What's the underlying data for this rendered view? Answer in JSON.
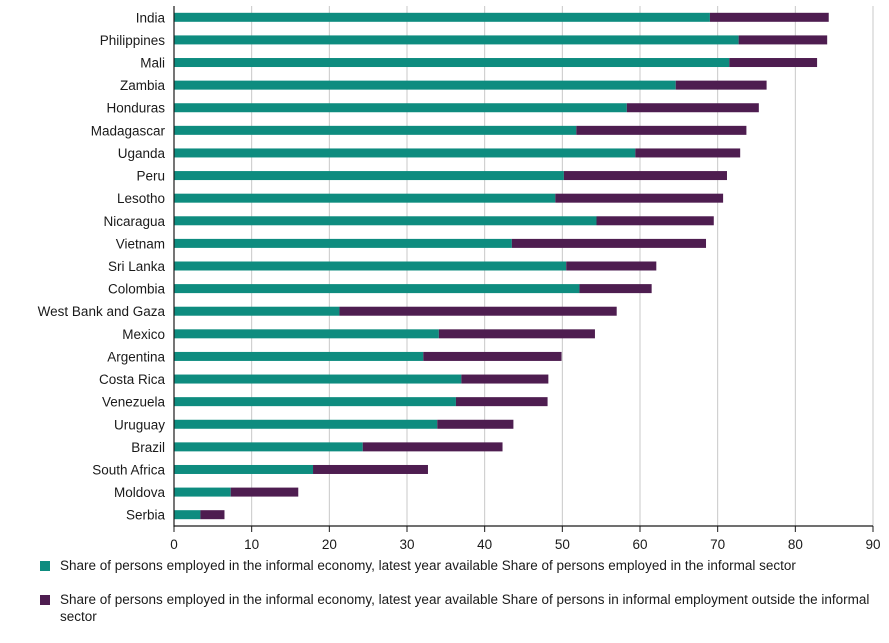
{
  "colors": {
    "sector": "#0e8c7f",
    "outside": "#4e1d50",
    "grid": "#c8c8c8",
    "axis": "#1a1a1a"
  },
  "chart_data": {
    "type": "bar",
    "orientation": "horizontal",
    "stacked": true,
    "categories": [
      "India",
      "Philippines",
      "Mali",
      "Zambia",
      "Honduras",
      "Madagascar",
      "Uganda",
      "Peru",
      "Lesotho",
      "Nicaragua",
      "Vietnam",
      "Sri Lanka",
      "Colombia",
      "West Bank and Gaza",
      "Mexico",
      "Argentina",
      "Costa Rica",
      "Venezuela",
      "Uruguay",
      "Brazil",
      "South Africa",
      "Moldova",
      "Serbia"
    ],
    "series": [
      {
        "name": "Share of persons employed in the informal economy, latest year available Share of persons employed in the informal sector",
        "color": "#0e8c7f",
        "values": [
          69.0,
          72.7,
          71.5,
          64.6,
          58.3,
          51.8,
          59.4,
          50.2,
          49.1,
          54.4,
          43.5,
          50.5,
          52.2,
          21.3,
          34.1,
          32.1,
          37.0,
          36.3,
          33.9,
          24.3,
          17.9,
          7.3,
          3.4
        ]
      },
      {
        "name": "Share of persons employed in the informal economy, latest year available Share of persons in informal employment outside the informal sector",
        "color": "#4e1d50",
        "values": [
          15.3,
          11.4,
          11.3,
          11.7,
          17.0,
          21.9,
          13.5,
          21.0,
          21.6,
          15.1,
          25.0,
          11.6,
          9.3,
          35.7,
          20.1,
          17.8,
          11.2,
          11.8,
          9.8,
          18.0,
          14.8,
          8.7,
          3.1
        ]
      }
    ],
    "xlim": [
      0,
      90
    ],
    "xticks": [
      0,
      10,
      20,
      30,
      40,
      50,
      60,
      70,
      80,
      90
    ],
    "grid": true,
    "legend_position": "bottom"
  }
}
